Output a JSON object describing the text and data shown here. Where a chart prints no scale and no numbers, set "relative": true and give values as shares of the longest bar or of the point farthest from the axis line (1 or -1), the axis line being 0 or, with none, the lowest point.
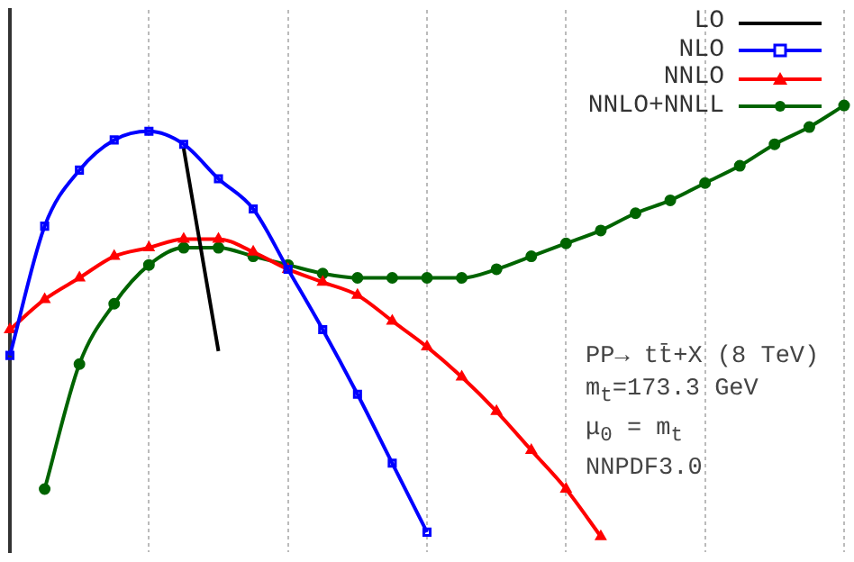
{
  "chart_data": {
    "type": "line",
    "relative": true,
    "grid": "x",
    "legend": "top right",
    "line_style": "solid",
    "categories": [
      null,
      null,
      null,
      null,
      null,
      null,
      null,
      null,
      null,
      null,
      null,
      null,
      null,
      null,
      null,
      null,
      null,
      null,
      null,
      null,
      null,
      null,
      null,
      null,
      null
    ],
    "series": [
      {
        "name": "LO",
        "color": "#000000",
        "marker": "none",
        "values": [
          null,
          null,
          null,
          null,
          null,
          0.9,
          0.43,
          null,
          null,
          null,
          null,
          null,
          null,
          null,
          null,
          null,
          null,
          null,
          null,
          null,
          null,
          null,
          null,
          null,
          null
        ]
      },
      {
        "name": "NLO",
        "color": "#0000ff",
        "marker": "square",
        "values": [
          0.42,
          0.72,
          0.85,
          0.92,
          0.94,
          0.91,
          0.83,
          0.76,
          0.62,
          0.48,
          0.33,
          0.17,
          0.01,
          null,
          null,
          null,
          null,
          null,
          null,
          null,
          null,
          null,
          null,
          null,
          null
        ]
      },
      {
        "name": "NNLO",
        "color": "#ff0000",
        "marker": "triangle",
        "values": [
          0.48,
          0.55,
          0.6,
          0.65,
          0.67,
          0.69,
          0.69,
          0.66,
          0.62,
          0.59,
          0.56,
          0.5,
          0.44,
          0.37,
          0.29,
          0.2,
          0.11,
          0.0,
          null,
          null,
          null,
          null,
          null,
          null,
          null
        ]
      },
      {
        "name": "NNLO+NNLL",
        "color": "#006400",
        "marker": "circle",
        "values": [
          null,
          0.11,
          0.4,
          0.54,
          0.63,
          0.67,
          0.67,
          0.65,
          0.63,
          0.61,
          0.6,
          0.6,
          0.6,
          0.6,
          0.62,
          0.65,
          0.68,
          0.71,
          0.75,
          0.78,
          0.82,
          0.86,
          0.91,
          0.95,
          1.0
        ]
      }
    ],
    "annotations": [
      "PP→ tt̄+X (8 TeV)",
      "m$_{t}$=173.3 GeV",
      "μ$_{0}$ = m$_{t}$",
      "NNPDF3.0"
    ]
  }
}
